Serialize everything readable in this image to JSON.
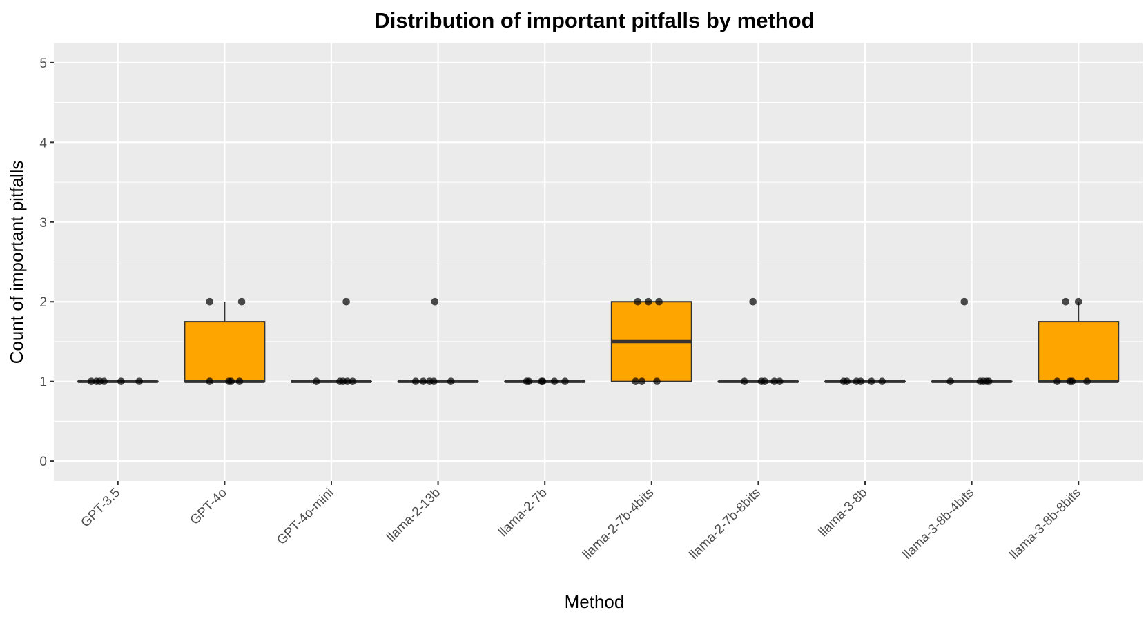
{
  "chart_data": {
    "type": "box",
    "title": "Distribution of important pitfalls by method",
    "xlabel": "Method",
    "ylabel": "Count of important pitfalls",
    "ylim": [
      -0.25,
      5.25
    ],
    "yticks": [
      0,
      1,
      2,
      3,
      4,
      5
    ],
    "grid": true,
    "legend": "none",
    "colors": {
      "panel": "#ebebeb",
      "grid": "#ffffff",
      "box_fill": "#ffa500",
      "box_stroke": "#333333",
      "point": "#000000"
    },
    "categories": [
      "GPT-3.5",
      "GPT-4o",
      "GPT-4o-mini",
      "llama-2-13b",
      "llama-2-7b",
      "llama-2-7b-4bits",
      "llama-2-7b-8bits",
      "llama-3-8b",
      "llama-3-8b-4bits",
      "llama-3-8b-8bits"
    ],
    "boxes": [
      {
        "q1": 1,
        "median": 1,
        "q3": 1,
        "whisker_low": 1,
        "whisker_high": 1
      },
      {
        "q1": 1,
        "median": 1,
        "q3": 1.75,
        "whisker_low": 1,
        "whisker_high": 2
      },
      {
        "q1": 1,
        "median": 1,
        "q3": 1,
        "whisker_low": 1,
        "whisker_high": 1
      },
      {
        "q1": 1,
        "median": 1,
        "q3": 1,
        "whisker_low": 1,
        "whisker_high": 1
      },
      {
        "q1": 1,
        "median": 1,
        "q3": 1,
        "whisker_low": 1,
        "whisker_high": 1
      },
      {
        "q1": 1,
        "median": 1.5,
        "q3": 2,
        "whisker_low": 1,
        "whisker_high": 2
      },
      {
        "q1": 1,
        "median": 1,
        "q3": 1,
        "whisker_low": 1,
        "whisker_high": 1
      },
      {
        "q1": 1,
        "median": 1,
        "q3": 1,
        "whisker_low": 1,
        "whisker_high": 1
      },
      {
        "q1": 1,
        "median": 1,
        "q3": 1,
        "whisker_low": 1,
        "whisker_high": 1
      },
      {
        "q1": 1,
        "median": 1,
        "q3": 1.75,
        "whisker_low": 1,
        "whisker_high": 2
      }
    ],
    "points": [
      {
        "category": "GPT-3.5",
        "values": [
          1,
          1,
          1,
          1,
          1,
          1
        ],
        "jitter": [
          -0.25,
          -0.2,
          -0.17,
          -0.13,
          0.03,
          0.2
        ]
      },
      {
        "category": "GPT-4o",
        "values": [
          2,
          2,
          1,
          1,
          1,
          1
        ],
        "jitter": [
          -0.14,
          0.16,
          -0.14,
          0.04,
          0.06,
          0.14
        ]
      },
      {
        "category": "GPT-4o-mini",
        "values": [
          2,
          1,
          1,
          1,
          1,
          1
        ],
        "jitter": [
          0.14,
          -0.14,
          0.08,
          0.11,
          0.15,
          0.2
        ]
      },
      {
        "category": "llama-2-13b",
        "values": [
          2,
          1,
          1,
          1,
          1,
          1
        ],
        "jitter": [
          -0.03,
          -0.21,
          -0.14,
          -0.08,
          -0.04,
          0.12
        ]
      },
      {
        "category": "llama-2-7b",
        "values": [
          1,
          1,
          1,
          1,
          1,
          1
        ],
        "jitter": [
          -0.17,
          -0.15,
          -0.03,
          -0.02,
          0.09,
          0.19
        ]
      },
      {
        "category": "llama-2-7b-4bits",
        "values": [
          2,
          2,
          2,
          1,
          1,
          1
        ],
        "jitter": [
          -0.13,
          -0.03,
          0.07,
          -0.15,
          -0.09,
          0.05
        ]
      },
      {
        "category": "llama-2-7b-8bits",
        "values": [
          2,
          1,
          1,
          1,
          1,
          1
        ],
        "jitter": [
          -0.05,
          -0.13,
          0.03,
          0.06,
          0.15,
          0.2
        ]
      },
      {
        "category": "llama-3-8b",
        "values": [
          1,
          1,
          1,
          1,
          1,
          1
        ],
        "jitter": [
          -0.2,
          -0.17,
          -0.08,
          -0.04,
          0.06,
          0.16
        ]
      },
      {
        "category": "llama-3-8b-4bits",
        "values": [
          2,
          1,
          1,
          1,
          1,
          1
        ],
        "jitter": [
          -0.07,
          -0.2,
          0.08,
          0.11,
          0.14,
          0.16
        ]
      },
      {
        "category": "llama-3-8b-8bits",
        "values": [
          2,
          2,
          1,
          1,
          1,
          1
        ],
        "jitter": [
          -0.12,
          0.0,
          -0.2,
          -0.08,
          -0.06,
          0.08
        ]
      }
    ]
  }
}
